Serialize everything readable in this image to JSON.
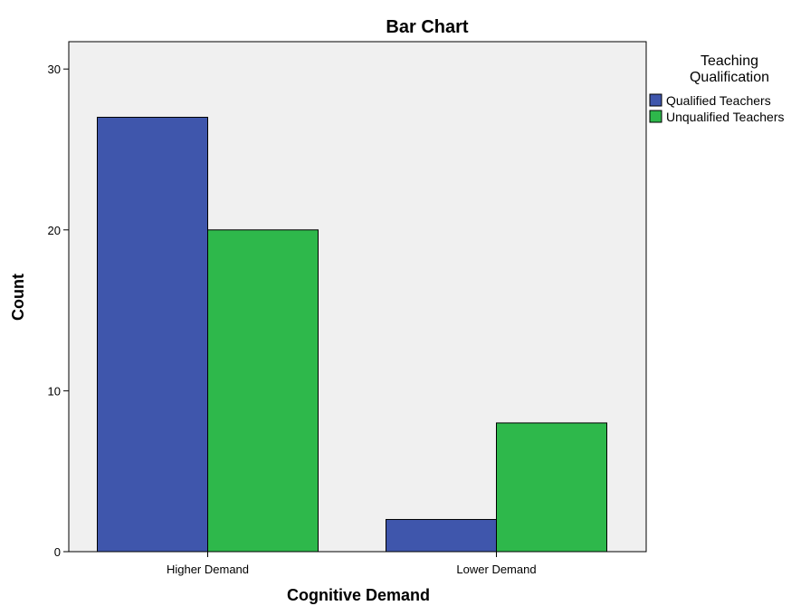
{
  "chart_data": {
    "type": "bar",
    "title": "Bar Chart",
    "xlabel": "Cognitive Demand",
    "ylabel": "Count",
    "categories": [
      "Higher Demand",
      "Lower Demand"
    ],
    "series": [
      {
        "name": "Qualified Teachers",
        "values": [
          27,
          2
        ],
        "color": "#3f56ac"
      },
      {
        "name": "Unqualified Teachers",
        "values": [
          20,
          8
        ],
        "color": "#2eb84b"
      }
    ],
    "ylim": [
      0,
      31.7
    ],
    "yticks": [
      0,
      10,
      20,
      30
    ],
    "grid": false,
    "legend": {
      "title_lines": [
        "Teaching",
        "Qualification"
      ],
      "position": "right"
    },
    "plot_background": "#f0f0f0"
  }
}
